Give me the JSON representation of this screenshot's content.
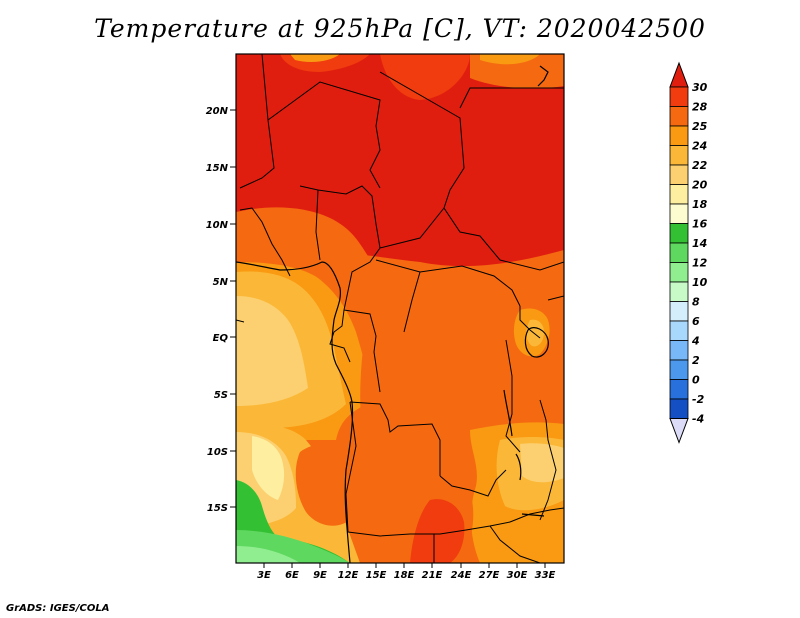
{
  "title": "Temperature at 925hPa [C], VT: 2020042500",
  "credit": "GrADS: IGES/COLA",
  "lat_labels": [
    "20N",
    "15N",
    "10N",
    "5N",
    "EQ",
    "5S",
    "10S",
    "15S"
  ],
  "lon_labels": [
    "3E",
    "6E",
    "9E",
    "12E",
    "15E",
    "18E",
    "21E",
    "24E",
    "27E",
    "30E",
    "33E"
  ],
  "colorbar": {
    "labels": [
      "30",
      "28",
      "25",
      "24",
      "22",
      "20",
      "18",
      "16",
      "14",
      "12",
      "10",
      "8",
      "6",
      "4",
      "2",
      "0",
      "-2",
      "-4"
    ],
    "colors": [
      "#e01e10",
      "#f03c0e",
      "#f56a10",
      "#f99a12",
      "#fbb838",
      "#fcd070",
      "#fdeea0",
      "#fdfcd0",
      "#33c033",
      "#5fd85f",
      "#90ee90",
      "#c8fac8",
      "#d4eefc",
      "#a8d8fc",
      "#78b8f8",
      "#4c98ec",
      "#2870dc",
      "#1450c4",
      "#0a30a0",
      "#081870",
      "#dcdcf8"
    ]
  }
}
